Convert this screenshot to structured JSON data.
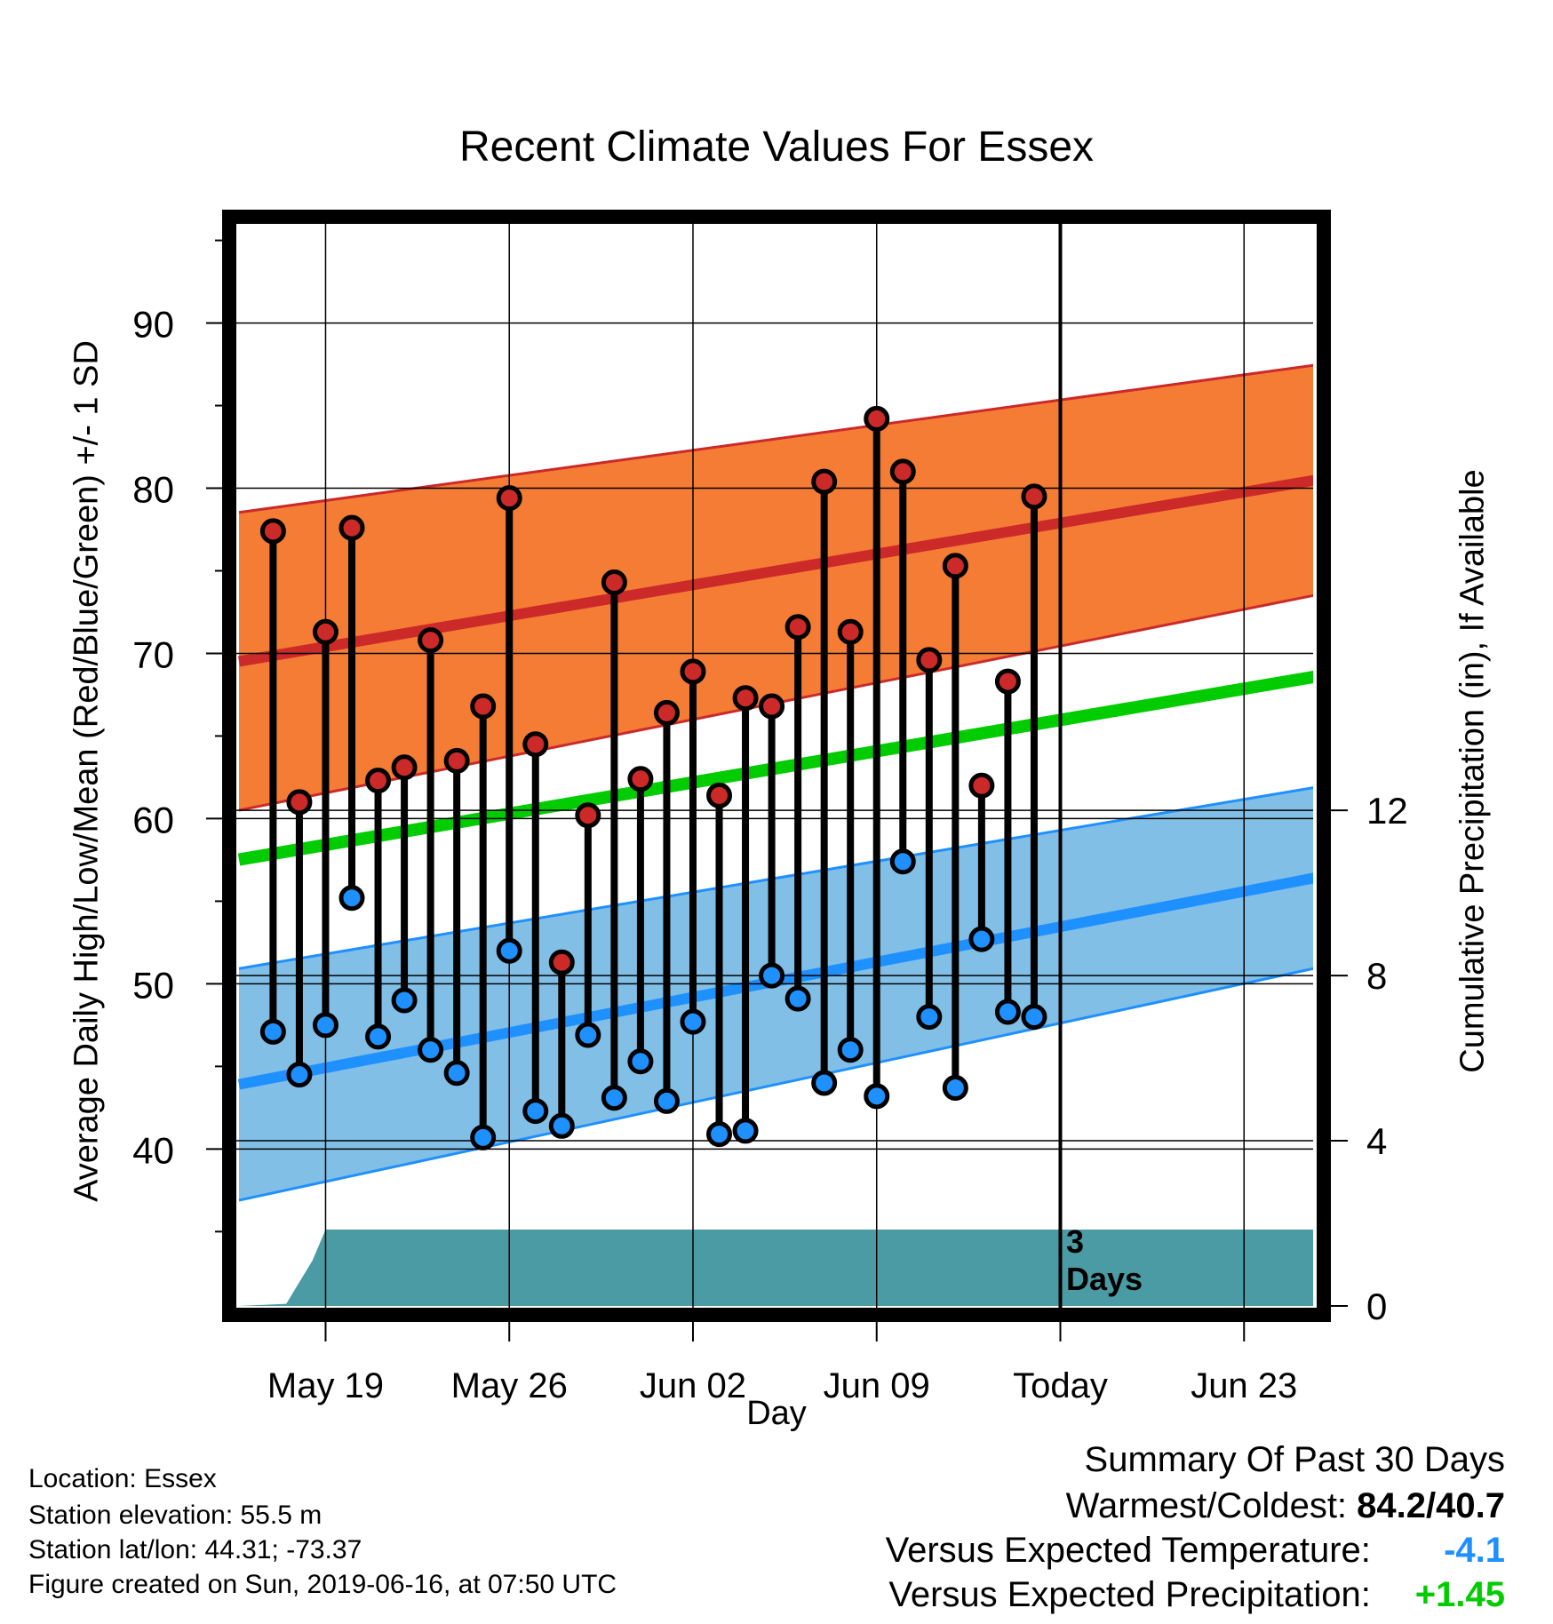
{
  "chart_data": {
    "type": "range-bar",
    "title": "Recent Climate Values For Essex",
    "xlabel": "Day",
    "ylabel": "Average Daily High/Low/Mean (Red/Blue/Green) +/- 1 SD",
    "y2label": "Cumulative Precipitation (in), If Available",
    "x_ticks": [
      "May 19",
      "May 26",
      "Jun 02",
      "Jun 09",
      "Today",
      "Jun 23"
    ],
    "x_tick_days": [
      3,
      10,
      17,
      24,
      31,
      38
    ],
    "x_range_days": [
      -0.3,
      40.7
    ],
    "ylim": [
      30.5,
      96
    ],
    "y_ticks": [
      40,
      50,
      60,
      70,
      80,
      90
    ],
    "y2_ticks": [
      0,
      4,
      8,
      12
    ],
    "y2_to_y_factor": 2.5,
    "today_day": 31,
    "annotation": [
      "3",
      "Days"
    ],
    "colors": {
      "high": "#cc2929",
      "low": "#1e90ff",
      "mean": "#00cc00",
      "high_band": "#f47c35",
      "low_band": "#82bfe6",
      "precip": "#4a9ba3"
    },
    "normals": {
      "days": [
        0,
        40
      ],
      "high_mean": [
        69.6,
        80.3
      ],
      "high_sd": [
        9.0,
        7.0
      ],
      "low_mean": [
        44.0,
        56.2
      ],
      "low_sd": [
        7.0,
        5.5
      ],
      "mean": [
        57.6,
        68.4
      ]
    },
    "observations": [
      {
        "day": 1,
        "high": 77.4,
        "low": 47.1
      },
      {
        "day": 2,
        "high": 61.0,
        "low": 44.5
      },
      {
        "day": 3,
        "high": 71.3,
        "low": 47.5
      },
      {
        "day": 4,
        "high": 77.6,
        "low": 55.2
      },
      {
        "day": 5,
        "high": 62.3,
        "low": 46.8
      },
      {
        "day": 6,
        "high": 63.1,
        "low": 49.0
      },
      {
        "day": 7,
        "high": 70.8,
        "low": 46.0
      },
      {
        "day": 8,
        "high": 63.5,
        "low": 44.6
      },
      {
        "day": 9,
        "high": 66.8,
        "low": 40.7
      },
      {
        "day": 10,
        "high": 79.4,
        "low": 52.0
      },
      {
        "day": 11,
        "high": 64.5,
        "low": 42.3
      },
      {
        "day": 12,
        "high": 51.3,
        "low": 41.4
      },
      {
        "day": 13,
        "high": 60.2,
        "low": 46.9
      },
      {
        "day": 14,
        "high": 74.3,
        "low": 43.1
      },
      {
        "day": 15,
        "high": 62.4,
        "low": 45.3
      },
      {
        "day": 16,
        "high": 66.4,
        "low": 42.9
      },
      {
        "day": 17,
        "high": 68.9,
        "low": 47.7
      },
      {
        "day": 18,
        "high": 61.4,
        "low": 40.9
      },
      {
        "day": 19,
        "high": 67.3,
        "low": 41.1
      },
      {
        "day": 20,
        "high": 66.8,
        "low": 50.5
      },
      {
        "day": 21,
        "high": 71.6,
        "low": 49.1
      },
      {
        "day": 22,
        "high": 80.4,
        "low": 44.0
      },
      {
        "day": 23,
        "high": 71.3,
        "low": 46.0
      },
      {
        "day": 24,
        "high": 84.2,
        "low": 43.2
      },
      {
        "day": 25,
        "high": 81.0,
        "low": 57.4
      },
      {
        "day": 26,
        "high": 69.6,
        "low": 48.0
      },
      {
        "day": 27,
        "high": 75.3,
        "low": 43.7
      },
      {
        "day": 28,
        "high": 62.0,
        "low": 52.7
      },
      {
        "day": 29,
        "high": 68.3,
        "low": 48.3
      },
      {
        "day": 30,
        "high": 79.5,
        "low": 48.0
      }
    ],
    "precip_cumulative": {
      "days": [
        -0.3,
        1.5,
        2.5,
        3.0,
        40.7
      ],
      "values": [
        0.0,
        0.05,
        1.1,
        1.85,
        1.85
      ]
    }
  },
  "metadata": {
    "location": "Location: Essex",
    "elevation": "Station elevation: 55.5 m",
    "latlon": "Station lat/lon: 44.31; -73.37",
    "created": "Figure created on Sun, 2019-06-16, at 07:50 UTC"
  },
  "summary": {
    "heading": "Summary Of Past 30 Days",
    "warm_cold_label": "Warmest/Coldest:",
    "warm_cold_value": "84.2/40.7",
    "temp_label": "Versus Expected Temperature:",
    "temp_value": "-4.1",
    "temp_color": "#1e90ff",
    "precip_label": "Versus Expected Precipitation:",
    "precip_value": "+1.45",
    "precip_color": "#00cc00"
  }
}
